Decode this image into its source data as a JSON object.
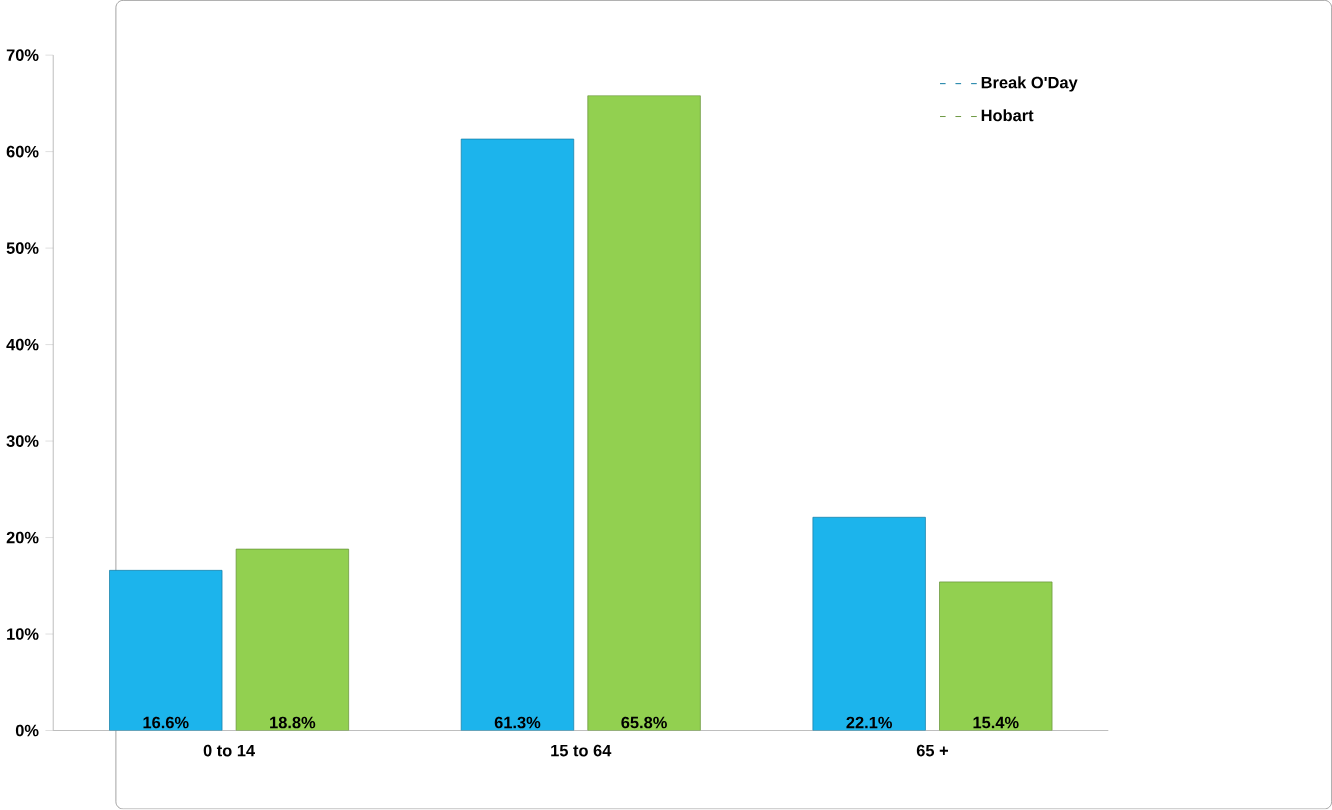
{
  "chart_data": {
    "type": "bar",
    "categories": [
      "0 to 14",
      "15 to 64",
      "65 +"
    ],
    "series": [
      {
        "name": "Break O'Day",
        "color": "#1cb4ec",
        "values": [
          16.6,
          61.3,
          22.1
        ],
        "value_labels": [
          "16.6%",
          "61.3%",
          "22.1%"
        ]
      },
      {
        "name": "Hobart",
        "color": "#92d050",
        "values": [
          18.8,
          65.8,
          15.4
        ],
        "value_labels": [
          "18.8%",
          "65.8%",
          "15.4%"
        ]
      }
    ],
    "ylim": [
      0,
      70
    ],
    "yticks": [
      {
        "value": 0,
        "label": "0%"
      },
      {
        "value": 10,
        "label": "10%"
      },
      {
        "value": 20,
        "label": "20%"
      },
      {
        "value": 30,
        "label": "30%"
      },
      {
        "value": 40,
        "label": "40%"
      },
      {
        "value": 50,
        "label": "50%"
      },
      {
        "value": 60,
        "label": "60%"
      },
      {
        "value": 70,
        "label": "70%"
      }
    ],
    "grid": false,
    "legend": "top right"
  }
}
